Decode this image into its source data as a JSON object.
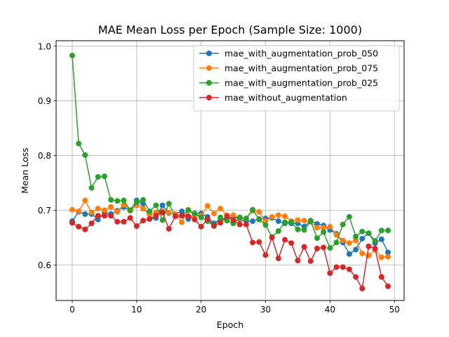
{
  "chart_data": {
    "type": "line",
    "title": "MAE Mean Loss per Epoch (Sample Size: 1000)",
    "xlabel": "Epoch",
    "ylabel": "Mean Loss",
    "xlim": [
      -2.5,
      51.5
    ],
    "ylim": [
      0.535,
      1.01
    ],
    "xticks": [
      0,
      10,
      20,
      30,
      40,
      50
    ],
    "yticks": [
      0.6,
      0.7,
      0.8,
      0.9,
      1.0
    ],
    "xtick_labels": [
      "0",
      "10",
      "20",
      "30",
      "40",
      "50"
    ],
    "ytick_labels": [
      "0.6",
      "0.7",
      "0.8",
      "0.9",
      "1.0"
    ],
    "grid": true,
    "legend_position": "top-right",
    "x": [
      0,
      1,
      2,
      3,
      4,
      5,
      6,
      7,
      8,
      9,
      10,
      11,
      12,
      13,
      14,
      15,
      16,
      17,
      18,
      19,
      20,
      21,
      22,
      23,
      24,
      25,
      26,
      27,
      28,
      29,
      30,
      31,
      32,
      33,
      34,
      35,
      36,
      37,
      38,
      39,
      40,
      41,
      42,
      43,
      44,
      45,
      46,
      47,
      48,
      49
    ],
    "series": [
      {
        "name": "mae_with_augmentation_prob_050",
        "color": "#1f77b4",
        "values": [
          0.68,
          0.697,
          0.693,
          0.693,
          0.683,
          0.696,
          0.693,
          0.699,
          0.706,
          0.7,
          0.718,
          0.712,
          0.684,
          0.686,
          0.709,
          0.695,
          0.693,
          0.698,
          0.684,
          0.694,
          0.694,
          0.688,
          0.676,
          0.684,
          0.685,
          0.689,
          0.683,
          0.68,
          0.68,
          0.684,
          0.685,
          0.686,
          0.68,
          0.676,
          0.676,
          0.676,
          0.67,
          0.681,
          0.675,
          0.672,
          0.664,
          0.657,
          0.641,
          0.62,
          0.628,
          0.648,
          0.658,
          0.64,
          0.647,
          0.623
        ]
      },
      {
        "name": "mae_with_augmentation_prob_075",
        "color": "#ff7f0e",
        "values": [
          0.701,
          0.698,
          0.718,
          0.696,
          0.703,
          0.7,
          0.706,
          0.697,
          0.71,
          0.699,
          0.709,
          0.703,
          0.692,
          0.696,
          0.698,
          0.696,
          0.693,
          0.678,
          0.701,
          0.69,
          0.69,
          0.708,
          0.694,
          0.703,
          0.691,
          0.691,
          0.685,
          0.685,
          0.699,
          0.697,
          0.68,
          0.688,
          0.691,
          0.689,
          0.68,
          0.682,
          0.681,
          0.679,
          0.668,
          0.668,
          0.67,
          0.655,
          0.645,
          0.64,
          0.645,
          0.621,
          0.617,
          0.628,
          0.614,
          0.615
        ]
      },
      {
        "name": "mae_with_augmentation_prob_025",
        "color": "#2ca02c",
        "values": [
          0.983,
          0.822,
          0.801,
          0.741,
          0.761,
          0.762,
          0.719,
          0.717,
          0.718,
          0.7,
          0.715,
          0.719,
          0.698,
          0.709,
          0.682,
          0.712,
          0.689,
          0.69,
          0.7,
          0.694,
          0.687,
          0.68,
          0.671,
          0.687,
          0.681,
          0.676,
          0.687,
          0.685,
          0.701,
          0.683,
          0.673,
          0.651,
          0.662,
          0.678,
          0.678,
          0.665,
          0.664,
          0.68,
          0.649,
          0.66,
          0.631,
          0.641,
          0.674,
          0.688,
          0.652,
          0.661,
          0.658,
          0.644,
          0.663,
          0.663
        ]
      },
      {
        "name": "mae_without_augmentation",
        "color": "#d62728",
        "values": [
          0.677,
          0.67,
          0.665,
          0.676,
          0.69,
          0.69,
          0.69,
          0.679,
          0.679,
          0.686,
          0.671,
          0.681,
          0.684,
          0.69,
          0.696,
          0.666,
          0.689,
          0.69,
          0.689,
          0.683,
          0.67,
          0.684,
          0.672,
          0.677,
          0.689,
          0.682,
          0.674,
          0.674,
          0.641,
          0.642,
          0.618,
          0.65,
          0.612,
          0.646,
          0.64,
          0.608,
          0.633,
          0.607,
          0.63,
          0.632,
          0.585,
          0.596,
          0.596,
          0.592,
          0.578,
          0.557,
          0.634,
          0.63,
          0.578,
          0.561
        ]
      }
    ]
  }
}
